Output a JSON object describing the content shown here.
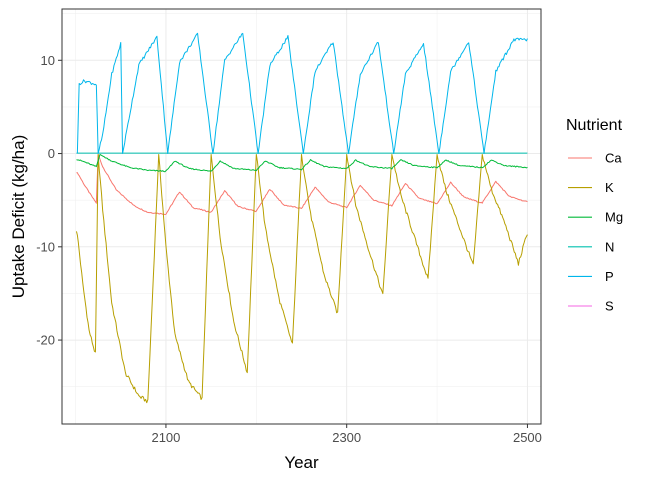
{
  "chart_data": {
    "type": "line",
    "xlabel": "Year",
    "ylabel": "Uptake Deficit (kg/ha)",
    "xlim": [
      1985,
      2515
    ],
    "ylim": [
      -29,
      15.5
    ],
    "xticks": [
      2100,
      2300,
      2500
    ],
    "yticks": [
      10,
      0,
      -10,
      -20
    ],
    "grid": true,
    "legend_title": "Nutrient",
    "legend_position": "right",
    "cycle_starts": [
      2002,
      2052,
      2102,
      2152,
      2202,
      2252,
      2302,
      2352,
      2402,
      2452
    ],
    "series": [
      {
        "name": "Ca",
        "color": "#F8766D",
        "x": [
          2001,
          2003,
          2010,
          2020,
          2023,
          2025,
          2030,
          2045,
          2065,
          2080,
          2100,
          2115,
          2130,
          2150,
          2165,
          2180,
          2200,
          2215,
          2230,
          2250,
          2265,
          2280,
          2300,
          2315,
          2330,
          2350,
          2365,
          2380,
          2400,
          2415,
          2430,
          2450,
          2465,
          2480,
          2500
        ],
        "values": [
          -2.0,
          -2.2,
          -3.4,
          -4.9,
          -5.3,
          -0.1,
          -1.4,
          -3.9,
          -5.6,
          -6.3,
          -6.5,
          -4.1,
          -5.8,
          -6.3,
          -4.0,
          -5.7,
          -6.2,
          -3.8,
          -5.5,
          -5.9,
          -3.6,
          -5.2,
          -5.8,
          -3.4,
          -5.0,
          -5.6,
          -3.2,
          -4.8,
          -5.4,
          -3.1,
          -4.7,
          -5.3,
          -3.0,
          -4.6,
          -5.2
        ]
      },
      {
        "name": "K",
        "color": "#B79F00",
        "x": [
          2001,
          2003,
          2008,
          2015,
          2022,
          2025,
          2030,
          2040,
          2055,
          2070,
          2080,
          2092,
          2100,
          2110,
          2125,
          2140,
          2150,
          2160,
          2175,
          2190,
          2200,
          2210,
          2225,
          2240,
          2250,
          2260,
          2275,
          2290,
          2300,
          2310,
          2325,
          2340,
          2350,
          2360,
          2375,
          2390,
          2400,
          2410,
          2425,
          2440,
          2450,
          2460,
          2475,
          2490,
          2500
        ],
        "values": [
          -8.2,
          -9.5,
          -14.0,
          -19.0,
          -21.5,
          -0.1,
          -6.0,
          -16.0,
          -23.5,
          -26.0,
          -26.6,
          -0.1,
          -10.0,
          -19.5,
          -24.5,
          -26.3,
          -0.1,
          -9.0,
          -18.0,
          -23.5,
          -0.1,
          -8.0,
          -15.5,
          -20.5,
          -0.1,
          -6.5,
          -13.0,
          -17.2,
          -0.1,
          -5.5,
          -10.5,
          -15.2,
          -0.1,
          -4.5,
          -9.0,
          -13.5,
          -0.1,
          -4.0,
          -8.0,
          -12.0,
          -0.1,
          -3.8,
          -7.5,
          -11.8,
          -8.5
        ]
      },
      {
        "name": "Mg",
        "color": "#00BA38",
        "x": [
          2001,
          2010,
          2020,
          2023,
          2027,
          2040,
          2060,
          2080,
          2100,
          2110,
          2125,
          2150,
          2160,
          2175,
          2200,
          2210,
          2225,
          2250,
          2260,
          2275,
          2300,
          2310,
          2325,
          2350,
          2360,
          2375,
          2400,
          2410,
          2425,
          2450,
          2460,
          2475,
          2500
        ],
        "values": [
          -0.6,
          -0.9,
          -1.3,
          -1.4,
          -0.1,
          -0.8,
          -1.5,
          -1.8,
          -1.9,
          -0.8,
          -1.6,
          -1.9,
          -0.8,
          -1.6,
          -1.8,
          -0.8,
          -1.5,
          -1.7,
          -0.7,
          -1.4,
          -1.6,
          -0.7,
          -1.4,
          -1.6,
          -0.7,
          -1.3,
          -1.5,
          -0.7,
          -1.3,
          -1.5,
          -0.7,
          -1.3,
          -1.5
        ]
      },
      {
        "name": "N",
        "color": "#00C0AF",
        "x": [
          2001,
          2500
        ],
        "values": [
          0.05,
          0.05
        ]
      },
      {
        "name": "P",
        "color": "#00B6EB",
        "x": [
          2002,
          2004,
          2010,
          2020,
          2023,
          2025,
          2030,
          2040,
          2050,
          2052,
          2070,
          2090,
          2102,
          2115,
          2135,
          2152,
          2165,
          2185,
          2202,
          2215,
          2235,
          2252,
          2265,
          2285,
          2302,
          2315,
          2335,
          2352,
          2365,
          2385,
          2402,
          2415,
          2435,
          2452,
          2465,
          2485,
          2500
        ],
        "values": [
          0.0,
          7.5,
          7.8,
          7.5,
          7.4,
          0.0,
          2.0,
          8.5,
          11.8,
          0.0,
          9.5,
          12.5,
          0.0,
          9.8,
          12.8,
          0.0,
          10.0,
          12.9,
          0.0,
          9.5,
          12.5,
          0.0,
          8.8,
          12.0,
          0.0,
          8.5,
          12.0,
          0.0,
          8.5,
          11.8,
          0.0,
          8.8,
          12.0,
          0.0,
          8.8,
          12.2,
          12.2
        ]
      },
      {
        "name": "S",
        "color": "#F564E3",
        "x": [],
        "values": []
      }
    ]
  }
}
